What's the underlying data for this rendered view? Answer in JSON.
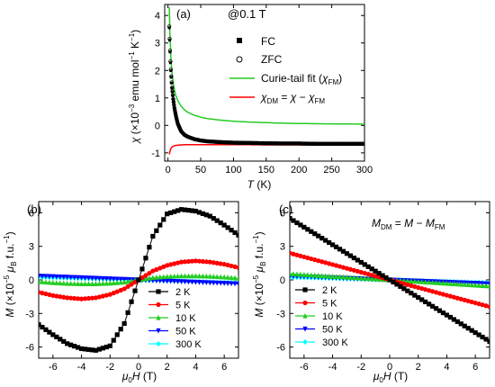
{
  "colors": {
    "black": "#000000",
    "red": "#ff0000",
    "green": "#22cc22",
    "blue": "#0000ff",
    "cyan": "#00ffff"
  },
  "chart_data": [
    {
      "panel_label": "(a)",
      "type": "scatter",
      "annotation": "@0.1 T",
      "xlabel_main": "T",
      "xlabel_unit": " (K)",
      "ylabel": "χ (×10⁻³ emu mol⁻¹ K⁻¹)",
      "xlim": [
        -5,
        300
      ],
      "ylim": [
        -1.3,
        4.4
      ],
      "xticks": [
        0,
        50,
        100,
        150,
        200,
        250,
        300
      ],
      "yticks": [
        -1,
        0,
        1,
        2,
        3,
        4
      ],
      "xticklabels": [
        "0",
        "50",
        "100",
        "150",
        "200",
        "250",
        "300"
      ],
      "yticklabels": [
        "-1",
        "0",
        "1",
        "2",
        "3",
        "4"
      ],
      "legend": [
        {
          "label": "FC",
          "marker": "filled-square"
        },
        {
          "label": "ZFC",
          "marker": "open-circle"
        },
        {
          "label": "Curie-tail fit (χFM)",
          "marker": "line",
          "color": "#22cc22"
        },
        {
          "label": "χDM = χ − χFM",
          "marker": "line",
          "color": "#ff0000"
        }
      ],
      "series": [
        {
          "name": "FC",
          "x": [
            2,
            3,
            4,
            5,
            6,
            8,
            10,
            12,
            15,
            20,
            25,
            30,
            40,
            50,
            60,
            80,
            100,
            125,
            150,
            175,
            200,
            225,
            250,
            275,
            300
          ],
          "y": [
            3.55,
            2.8,
            2.15,
            1.75,
            1.4,
            0.95,
            0.6,
            0.35,
            0.05,
            -0.22,
            -0.35,
            -0.42,
            -0.5,
            -0.55,
            -0.58,
            -0.61,
            -0.63,
            -0.64,
            -0.65,
            -0.66,
            -0.66,
            -0.67,
            -0.67,
            -0.67,
            -0.67
          ]
        },
        {
          "name": "ZFC",
          "x": [
            2,
            3,
            4,
            5,
            6,
            8,
            10,
            12,
            15,
            20,
            25,
            30,
            40,
            50,
            60,
            80,
            100,
            125,
            150,
            175,
            200,
            225,
            250,
            275,
            300
          ],
          "y": [
            3.6,
            2.85,
            2.2,
            1.78,
            1.42,
            0.96,
            0.61,
            0.36,
            0.06,
            -0.21,
            -0.34,
            -0.41,
            -0.5,
            -0.55,
            -0.58,
            -0.61,
            -0.63,
            -0.64,
            -0.65,
            -0.66,
            -0.66,
            -0.67,
            -0.67,
            -0.67,
            -0.67
          ]
        },
        {
          "name": "Curie-tail fit (χFM)",
          "x": [
            2,
            3,
            4,
            5,
            6,
            8,
            10,
            12,
            15,
            20,
            25,
            30,
            40,
            50,
            60,
            80,
            100,
            125,
            150,
            175,
            200,
            225,
            250,
            275,
            300
          ],
          "y": [
            4.3,
            3.3,
            2.7,
            2.25,
            1.95,
            1.55,
            1.28,
            1.08,
            0.9,
            0.7,
            0.57,
            0.48,
            0.37,
            0.3,
            0.25,
            0.19,
            0.15,
            0.12,
            0.1,
            0.08,
            0.07,
            0.06,
            0.055,
            0.05,
            0.045
          ]
        },
        {
          "name": "χDM = χ − χFM",
          "x": [
            2,
            3,
            4,
            6,
            8,
            10,
            15,
            20,
            30,
            50,
            75,
            100,
            150,
            200,
            250,
            300
          ],
          "y": [
            -1.05,
            -0.95,
            -0.86,
            -0.8,
            -0.76,
            -0.74,
            -0.72,
            -0.71,
            -0.7,
            -0.7,
            -0.7,
            -0.7,
            -0.71,
            -0.71,
            -0.71,
            -0.72
          ]
        }
      ]
    },
    {
      "panel_label": "(b)",
      "type": "line",
      "xlabel": "μ0H (T)",
      "ylabel": "M (×10⁻⁵ μB f.u.⁻¹)",
      "xlim": [
        -7,
        7
      ],
      "ylim": [
        -7,
        7
      ],
      "xticks": [
        -6,
        -4,
        -2,
        0,
        2,
        4,
        6
      ],
      "yticks": [
        -6,
        -3,
        0,
        3,
        6
      ],
      "xticklabels": [
        "-6",
        "-4",
        "-2",
        "0",
        "2",
        "4",
        "6"
      ],
      "yticklabels": [
        "-6",
        "-3",
        "0",
        "3",
        "6"
      ],
      "legend": [
        "2 K",
        "5 K",
        "10 K",
        "50 K",
        "300 K"
      ],
      "series": [
        {
          "name": "2 K",
          "x": [
            -7,
            -6,
            -5,
            -4,
            -3,
            -2,
            -1,
            0,
            1,
            2,
            3,
            4,
            5,
            6,
            7
          ],
          "y": [
            -4.0,
            -4.9,
            -5.7,
            -6.15,
            -6.3,
            -5.9,
            -3.9,
            0.0,
            3.9,
            5.9,
            6.3,
            6.15,
            5.7,
            4.9,
            4.0
          ]
        },
        {
          "name": "5 K",
          "x": [
            -7,
            -6,
            -5,
            -4,
            -3,
            -2,
            -1,
            0,
            1,
            2,
            3,
            4,
            5,
            6,
            7
          ],
          "y": [
            -1.1,
            -1.4,
            -1.6,
            -1.7,
            -1.6,
            -1.3,
            -0.8,
            0.0,
            0.8,
            1.3,
            1.6,
            1.7,
            1.6,
            1.4,
            1.1
          ]
        },
        {
          "name": "10 K",
          "x": [
            -7,
            -6,
            -5,
            -4,
            -3,
            -2,
            -1,
            0,
            1,
            2,
            3,
            4,
            5,
            6,
            7
          ],
          "y": [
            -0.15,
            -0.25,
            -0.32,
            -0.35,
            -0.35,
            -0.3,
            -0.2,
            0.0,
            0.2,
            0.3,
            0.35,
            0.35,
            0.32,
            0.25,
            0.15
          ]
        },
        {
          "name": "50 K",
          "x": [
            -7,
            -6,
            -5,
            -4,
            -3,
            -2,
            -1,
            0,
            1,
            2,
            3,
            4,
            5,
            6,
            7
          ],
          "y": [
            0.35,
            0.3,
            0.25,
            0.2,
            0.15,
            0.1,
            0.05,
            0.0,
            -0.05,
            -0.1,
            -0.15,
            -0.2,
            -0.25,
            -0.3,
            -0.35
          ]
        },
        {
          "name": "300 K",
          "x": [
            -7,
            -6,
            -5,
            -4,
            -3,
            -2,
            -1,
            0,
            1,
            2,
            3,
            4,
            5,
            6,
            7
          ],
          "y": [
            0.25,
            0.22,
            0.18,
            0.14,
            0.11,
            0.07,
            0.04,
            0.0,
            -0.04,
            -0.07,
            -0.11,
            -0.14,
            -0.18,
            -0.22,
            -0.25
          ]
        }
      ]
    },
    {
      "panel_label": "(c)",
      "type": "line",
      "annotation": "MDM = M − MFM",
      "xlabel": "μ0H (T)",
      "ylabel": "M (×10⁻⁵ μB f.u.⁻¹)",
      "xlim": [
        -7,
        7
      ],
      "ylim": [
        -7,
        7
      ],
      "xticks": [
        -6,
        -4,
        -2,
        0,
        2,
        4,
        6
      ],
      "yticks": [
        -6,
        -3,
        0,
        3,
        6
      ],
      "xticklabels": [
        "-6",
        "-4",
        "-2",
        "0",
        "2",
        "4",
        "6"
      ],
      "yticklabels": [
        "-6",
        "-3",
        "0",
        "3",
        "6"
      ],
      "legend": [
        "2 K",
        "5 K",
        "10 K",
        "50 K",
        "300 K"
      ],
      "series": [
        {
          "name": "2 K",
          "x": [
            -7,
            7
          ],
          "y": [
            5.5,
            -5.5
          ]
        },
        {
          "name": "5 K",
          "x": [
            -7,
            7
          ],
          "y": [
            2.4,
            -2.4
          ]
        },
        {
          "name": "10 K",
          "x": [
            -7,
            7
          ],
          "y": [
            0.55,
            -0.55
          ]
        },
        {
          "name": "50 K",
          "x": [
            -7,
            7
          ],
          "y": [
            0.35,
            -0.35
          ]
        },
        {
          "name": "300 K",
          "x": [
            -7,
            7
          ],
          "y": [
            0.25,
            -0.25
          ]
        }
      ]
    }
  ]
}
